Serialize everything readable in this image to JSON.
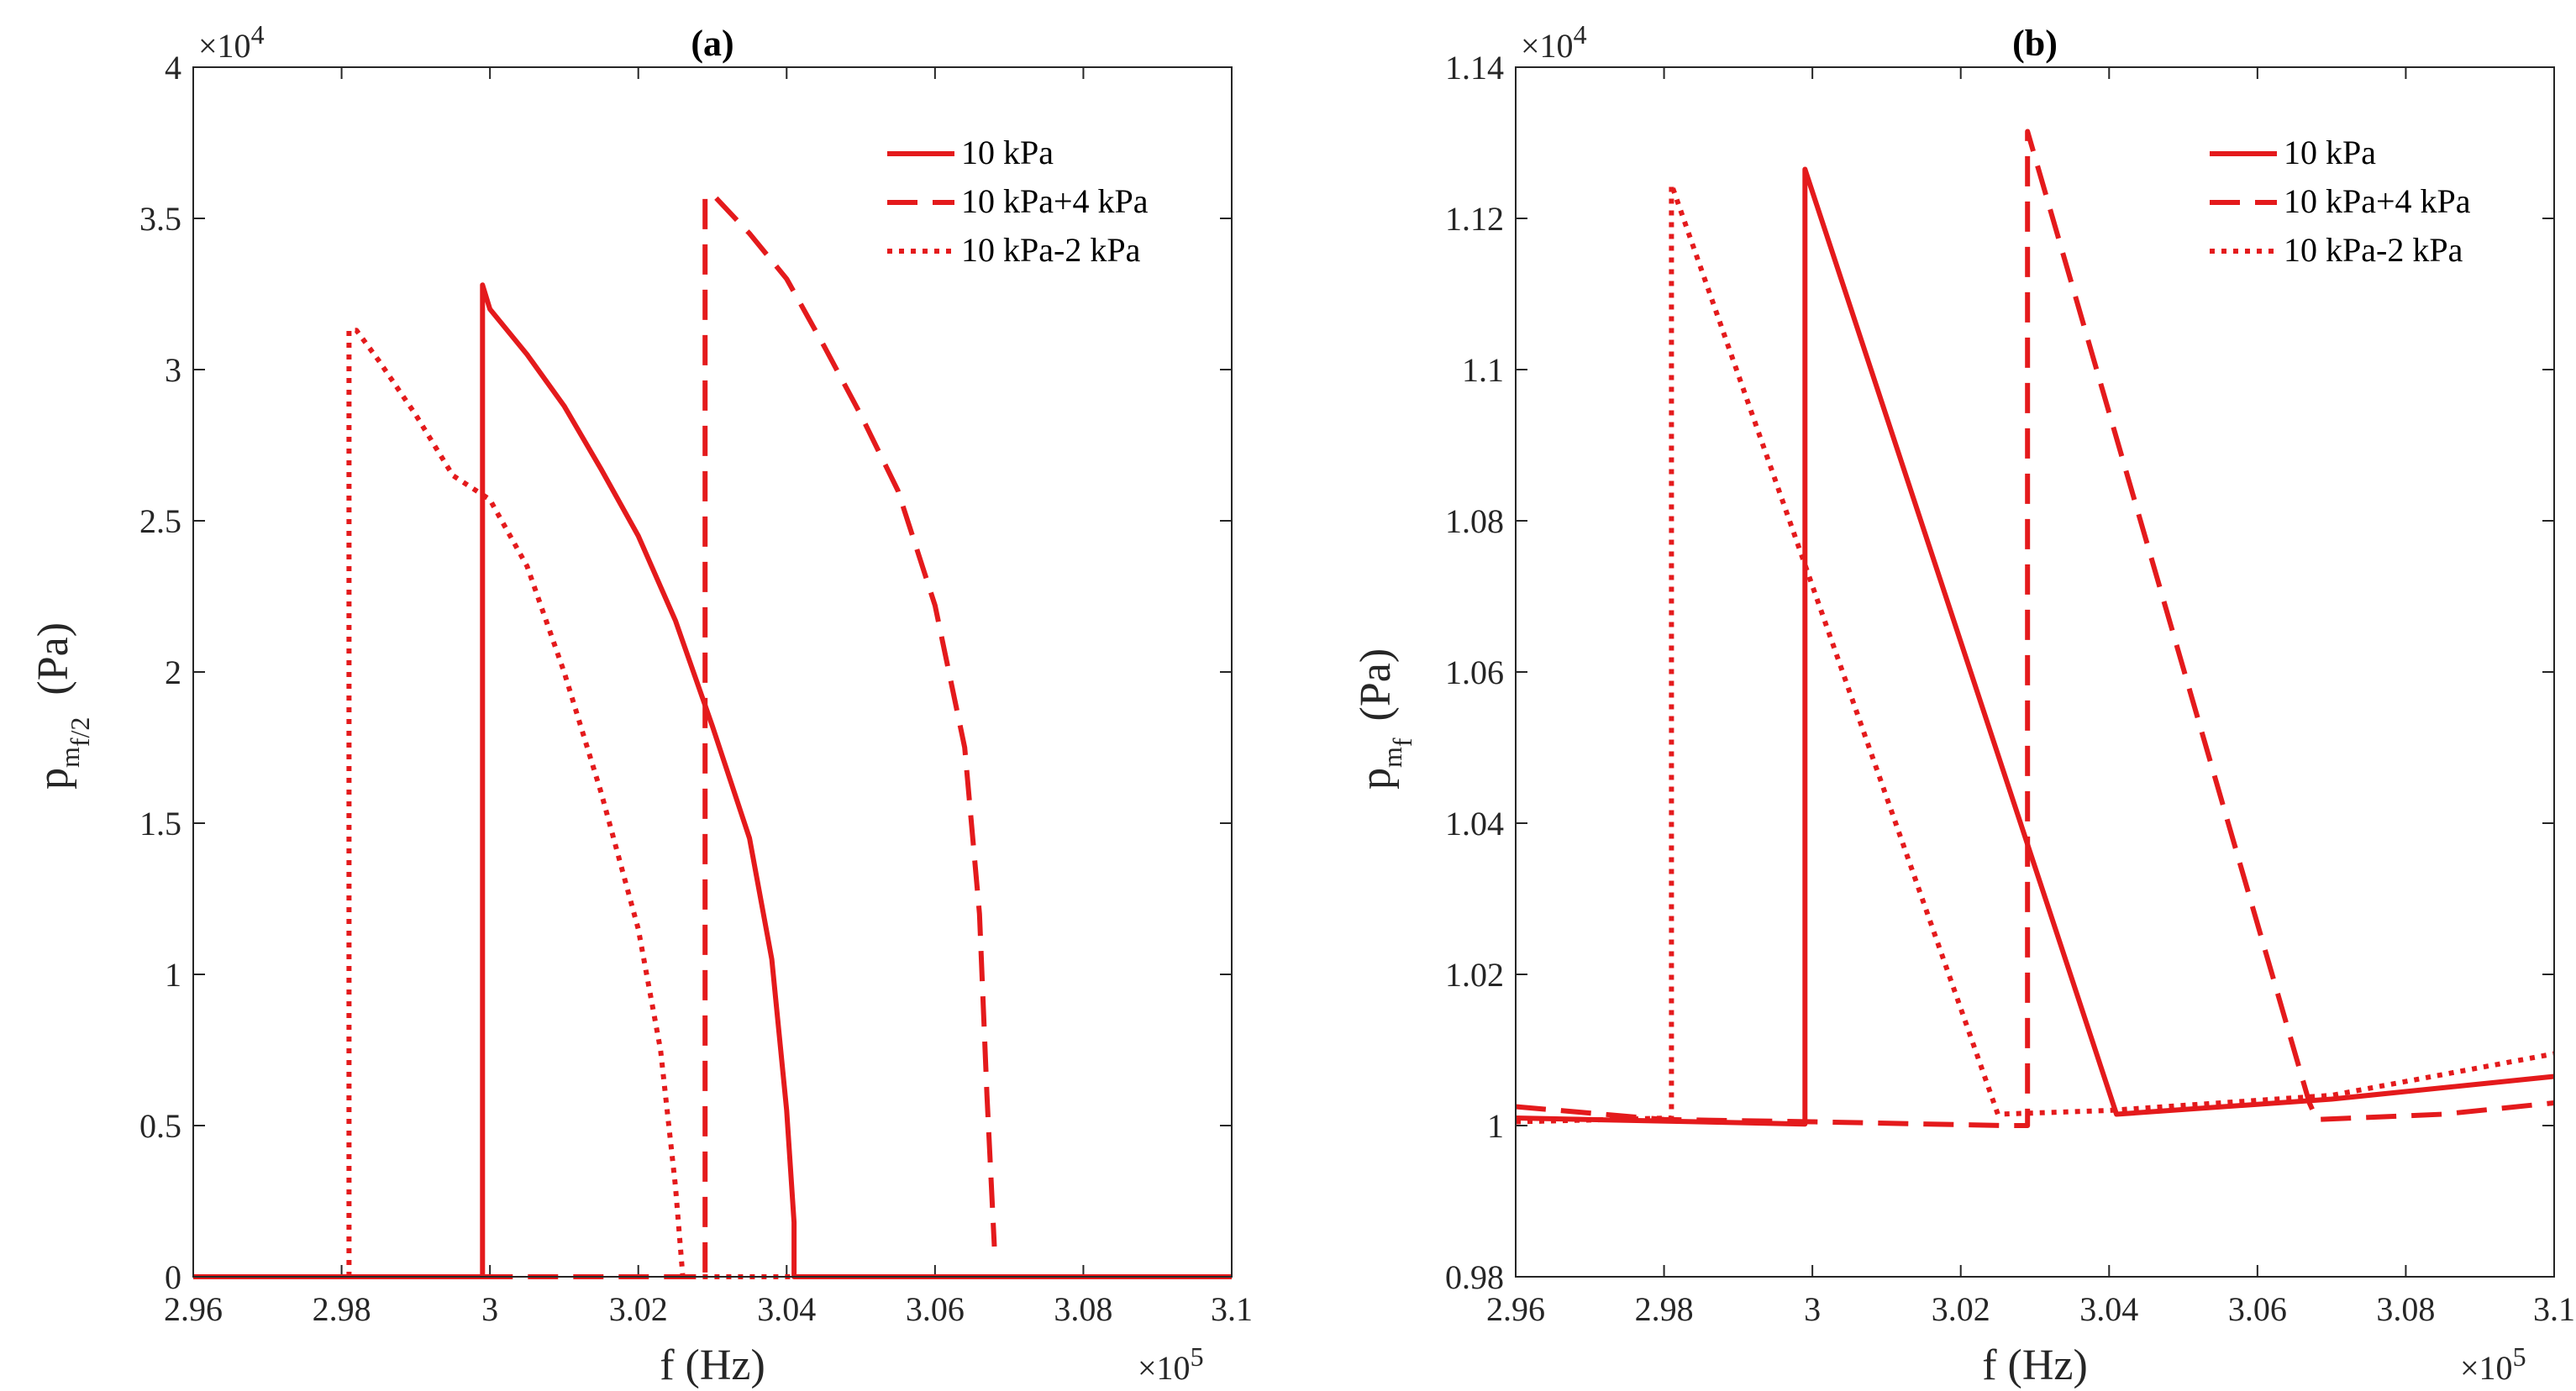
{
  "chart_data": [
    {
      "type": "line",
      "title": "(a)",
      "xlabel": "f (Hz)",
      "ylabel_main": "p",
      "ylabel_sub1": "m",
      "ylabel_sub2": "f/2",
      "ylabel_unit": "(Pa)",
      "x_multiplier": "×10",
      "x_multiplier_exp": "5",
      "y_multiplier": "×10",
      "y_multiplier_exp": "4",
      "xlim": [
        2.96,
        3.1
      ],
      "ylim": [
        0,
        4
      ],
      "xticks": [
        2.96,
        2.98,
        3.0,
        3.02,
        3.04,
        3.06,
        3.08,
        3.1
      ],
      "xtick_labels": [
        "2.96",
        "2.98",
        "3",
        "3.02",
        "3.04",
        "3.06",
        "3.08",
        "3.1"
      ],
      "yticks": [
        0,
        0.5,
        1,
        1.5,
        2,
        2.5,
        3,
        3.5,
        4
      ],
      "ytick_labels": [
        "0",
        "0.5",
        "1",
        "1.5",
        "2",
        "2.5",
        "3",
        "3.5",
        "4"
      ],
      "legend_position": "top-right",
      "series": [
        {
          "name": "10 kPa",
          "style": "solid",
          "color": "#e41a1c",
          "points": [
            [
              2.96,
              0
            ],
            [
              2.999,
              0
            ],
            [
              2.999,
              3.28
            ],
            [
              3.0,
              3.2
            ],
            [
              3.005,
              3.05
            ],
            [
              3.01,
              2.88
            ],
            [
              3.015,
              2.67
            ],
            [
              3.02,
              2.45
            ],
            [
              3.025,
              2.17
            ],
            [
              3.03,
              1.82
            ],
            [
              3.035,
              1.45
            ],
            [
              3.038,
              1.05
            ],
            [
              3.04,
              0.55
            ],
            [
              3.041,
              0.18
            ],
            [
              3.041,
              0
            ],
            [
              3.1,
              0
            ]
          ]
        },
        {
          "name": "10 kPa+4 kPa",
          "style": "dashed",
          "color": "#e41a1c",
          "points": [
            [
              2.999,
              0
            ],
            [
              3.029,
              0
            ],
            [
              3.029,
              3.57
            ],
            [
              3.03,
              3.58
            ],
            [
              3.035,
              3.45
            ],
            [
              3.04,
              3.3
            ],
            [
              3.045,
              3.08
            ],
            [
              3.05,
              2.85
            ],
            [
              3.055,
              2.6
            ],
            [
              3.06,
              2.22
            ],
            [
              3.064,
              1.75
            ],
            [
              3.066,
              1.2
            ],
            [
              3.067,
              0.6
            ],
            [
              3.068,
              0.1
            ]
          ]
        },
        {
          "name": "10 kPa-2 kPa",
          "style": "dotted",
          "color": "#e41a1c",
          "points": [
            [
              2.981,
              0
            ],
            [
              2.981,
              3.13
            ],
            [
              2.982,
              3.13
            ],
            [
              2.985,
              3.03
            ],
            [
              2.99,
              2.85
            ],
            [
              2.995,
              2.65
            ],
            [
              3.0,
              2.57
            ],
            [
              3.005,
              2.35
            ],
            [
              3.01,
              2.0
            ],
            [
              3.015,
              1.6
            ],
            [
              3.02,
              1.15
            ],
            [
              3.023,
              0.75
            ],
            [
              3.025,
              0.3
            ],
            [
              3.026,
              0
            ],
            [
              3.041,
              0
            ]
          ]
        }
      ]
    },
    {
      "type": "line",
      "title": "(b)",
      "xlabel": "f (Hz)",
      "ylabel_main": "p",
      "ylabel_sub1": "m",
      "ylabel_sub2": "f",
      "ylabel_unit": "(Pa)",
      "x_multiplier": "×10",
      "x_multiplier_exp": "5",
      "y_multiplier": "×10",
      "y_multiplier_exp": "4",
      "xlim": [
        2.96,
        3.1
      ],
      "ylim": [
        0.98,
        1.14
      ],
      "xticks": [
        2.96,
        2.98,
        3.0,
        3.02,
        3.04,
        3.06,
        3.08,
        3.1
      ],
      "xtick_labels": [
        "2.96",
        "2.98",
        "3",
        "3.02",
        "3.04",
        "3.06",
        "3.08",
        "3.1"
      ],
      "yticks": [
        0.98,
        1.0,
        1.02,
        1.04,
        1.06,
        1.08,
        1.1,
        1.12,
        1.14
      ],
      "ytick_labels": [
        "0.98",
        "1",
        "1.02",
        "1.04",
        "1.06",
        "1.08",
        "1.1",
        "1.12",
        "1.14"
      ],
      "legend_position": "top-right",
      "series": [
        {
          "name": "10 kPa",
          "style": "solid",
          "color": "#e41a1c",
          "points": [
            [
              2.96,
              1.001
            ],
            [
              2.999,
              1.0002
            ],
            [
              2.999,
              1.1265
            ],
            [
              3.041,
              1.0015
            ],
            [
              3.07,
              1.0035
            ],
            [
              3.1,
              1.0065
            ]
          ]
        },
        {
          "name": "10 kPa+4 kPa",
          "style": "dashed",
          "color": "#e41a1c",
          "points": [
            [
              2.96,
              1.0025
            ],
            [
              2.98,
              1.0008
            ],
            [
              3.0,
              1.0005
            ],
            [
              3.026,
              1.0
            ],
            [
              3.029,
              1.0
            ],
            [
              3.029,
              1.1315
            ],
            [
              3.067,
              1.003
            ],
            [
              3.068,
              1.0008
            ],
            [
              3.085,
              1.0015
            ],
            [
              3.1,
              1.003
            ]
          ]
        },
        {
          "name": "10 kPa-2 kPa",
          "style": "dotted",
          "color": "#e41a1c",
          "points": [
            [
              2.96,
              1.0005
            ],
            [
              2.981,
              1.001
            ],
            [
              2.981,
              1.1245
            ],
            [
              3.025,
              1.0015
            ],
            [
              3.04,
              1.002
            ],
            [
              3.07,
              1.004
            ],
            [
              3.1,
              1.0095
            ]
          ]
        }
      ]
    }
  ]
}
